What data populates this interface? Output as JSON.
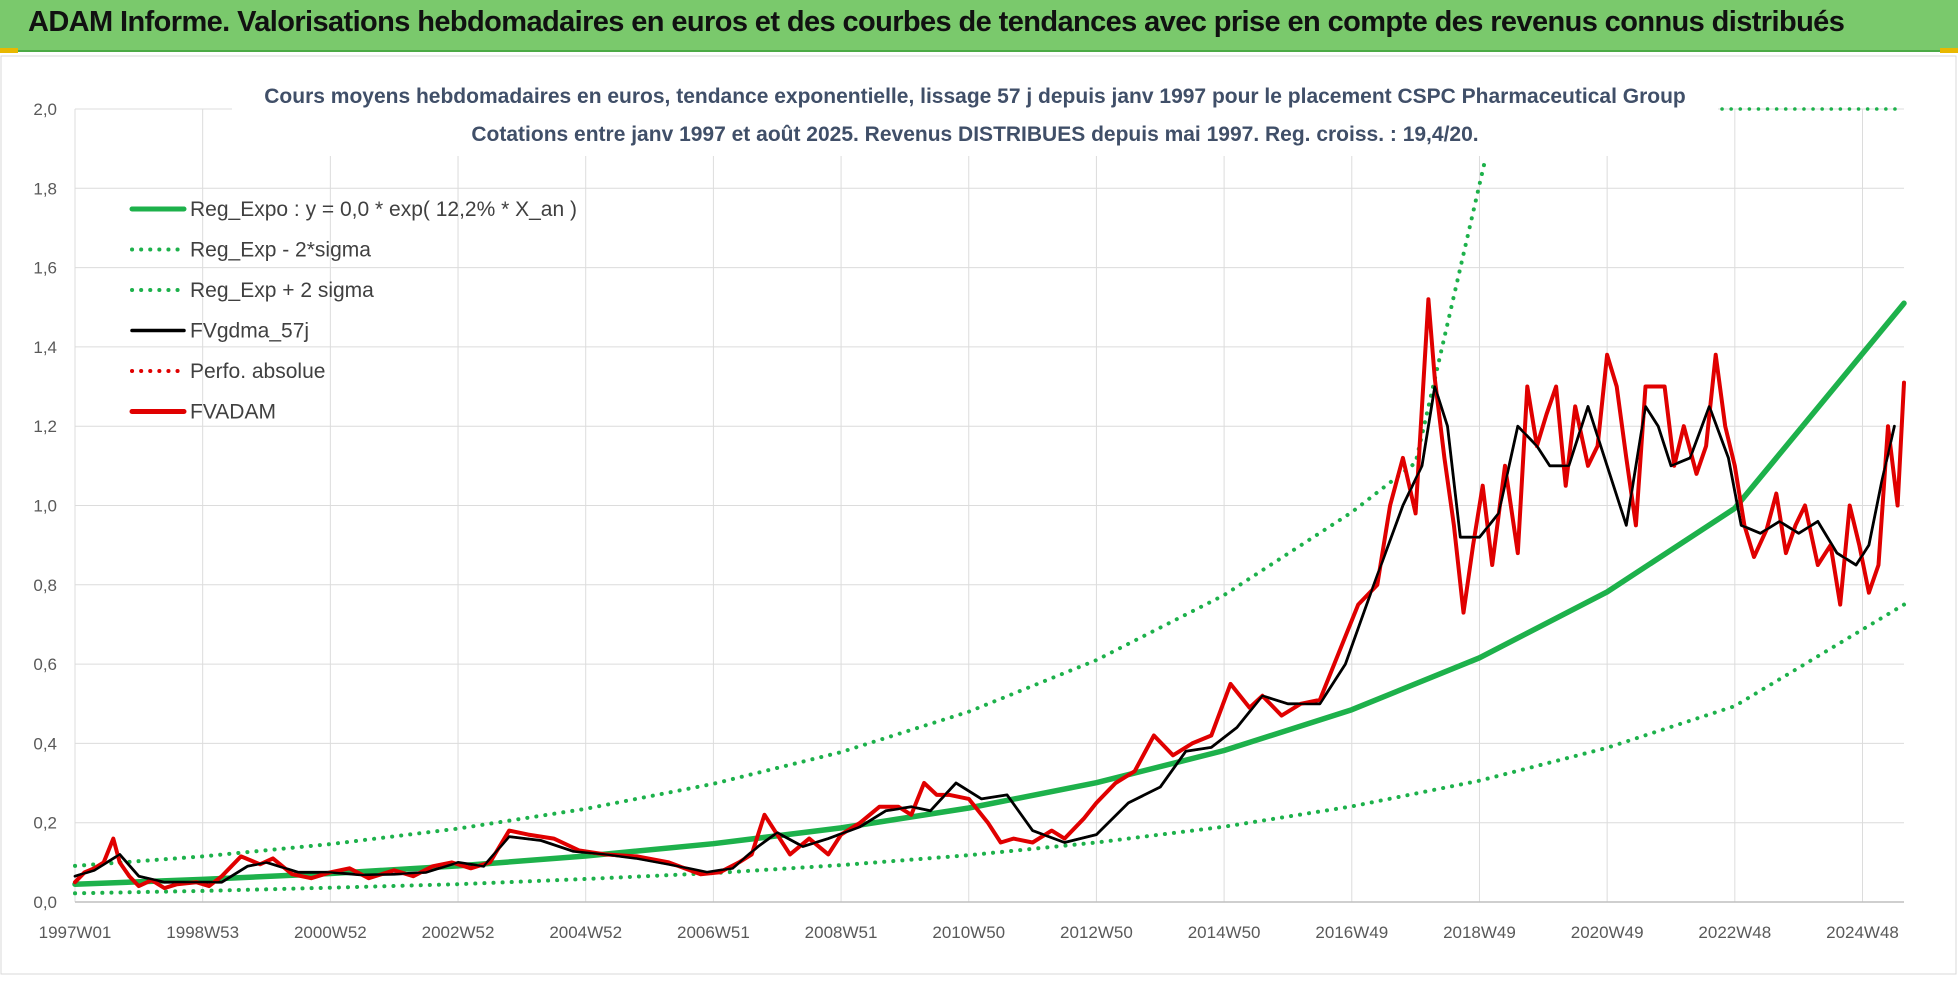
{
  "header": {
    "title": "ADAM Informe. Valorisations hebdomadaires en euros et des courbes de tendances avec prise en compte des revenus connus distribués"
  },
  "chart_data": {
    "type": "line",
    "title": "Cours moyens hebdomadaires en euros, tendance exponentielle, lissage 57 j depuis janv 1997  pour le placement CSPC Pharmaceutical Group",
    "subtitle": "Cotations entre janv 1997 et août 2025.  Revenus DISTRIBUES depuis mai 1997.  Reg. croiss. : 19,4/20.",
    "xlabel": "",
    "ylabel": "",
    "xlim": [
      1997.0,
      2025.65
    ],
    "ylim": [
      0,
      2.0
    ],
    "grid": true,
    "legend_position": "top-left",
    "y_ticks": [
      "0,0",
      "0,2",
      "0,4",
      "0,6",
      "0,8",
      "1,0",
      "1,2",
      "1,4",
      "1,6",
      "1,8",
      "2,0"
    ],
    "x_ticks": [
      {
        "label": "1997W01",
        "x": 1997.0
      },
      {
        "label": "1998W53",
        "x": 1999.0
      },
      {
        "label": "2000W52",
        "x": 2001.0
      },
      {
        "label": "2002W52",
        "x": 2003.0
      },
      {
        "label": "2004W52",
        "x": 2005.0
      },
      {
        "label": "2006W51",
        "x": 2007.0
      },
      {
        "label": "2008W51",
        "x": 2009.0
      },
      {
        "label": "2010W50",
        "x": 2011.0
      },
      {
        "label": "2012W50",
        "x": 2013.0
      },
      {
        "label": "2014W50",
        "x": 2015.0
      },
      {
        "label": "2016W49",
        "x": 2017.0
      },
      {
        "label": "2018W49",
        "x": 2019.0
      },
      {
        "label": "2020W49",
        "x": 2021.0
      },
      {
        "label": "2022W48",
        "x": 2023.0
      },
      {
        "label": "2024W48",
        "x": 2025.0
      }
    ],
    "legend": [
      {
        "label": "Reg_Expo : y = 0,0 * exp( 12,2% *  X_an )",
        "color": "#1db14b",
        "style": "solid-thick"
      },
      {
        "label": "Reg_Exp - 2*sigma",
        "color": "#1db14b",
        "style": "dotted"
      },
      {
        "label": "Reg_Exp + 2 sigma",
        "color": "#1db14b",
        "style": "dotted"
      },
      {
        "label": "FVgdma_57j",
        "color": "#000000",
        "style": "solid"
      },
      {
        "label": "Perfo. absolue",
        "color": "#e00000",
        "style": "dotted"
      },
      {
        "label": "FVADAM",
        "color": "#e00000",
        "style": "solid-thick"
      }
    ],
    "series": [
      {
        "name": "Reg_Expo : y = 0,0 * exp( 12,2% *  X_an )",
        "color": "#1db14b",
        "style": "solid-thick",
        "x": [
          1997.0,
          1999.0,
          2001.0,
          2003.0,
          2005.0,
          2007.0,
          2009.0,
          2011.0,
          2013.0,
          2015.0,
          2017.0,
          2019.0,
          2021.0,
          2023.0,
          2025.65
        ],
        "y": [
          0.045,
          0.057,
          0.072,
          0.091,
          0.116,
          0.147,
          0.187,
          0.237,
          0.301,
          0.382,
          0.485,
          0.616,
          0.782,
          0.993,
          1.51
        ]
      },
      {
        "name": "Reg_Exp - 2*sigma",
        "color": "#1db14b",
        "style": "dotted",
        "x": [
          1997.0,
          1999.0,
          2001.0,
          2003.0,
          2005.0,
          2007.0,
          2009.0,
          2011.0,
          2013.0,
          2015.0,
          2017.0,
          2019.0,
          2021.0,
          2023.0,
          2025.65
        ],
        "y": [
          0.022,
          0.028,
          0.036,
          0.045,
          0.058,
          0.073,
          0.093,
          0.118,
          0.15,
          0.19,
          0.241,
          0.306,
          0.389,
          0.494,
          0.75
        ]
      },
      {
        "name": "Reg_Exp + 2 sigma",
        "color": "#1db14b",
        "style": "dotted",
        "x": [
          1997.0,
          1999.0,
          2001.0,
          2003.0,
          2005.0,
          2007.0,
          2009.0,
          2011.0,
          2013.0,
          2015.0,
          2017.0,
          2018.0,
          2019.1
        ],
        "y": [
          0.091,
          0.115,
          0.146,
          0.185,
          0.235,
          0.298,
          0.378,
          0.48,
          0.61,
          0.774,
          0.983,
          1.108,
          1.88
        ]
      },
      {
        "name": "FVgdma_57j",
        "color": "#000000",
        "style": "solid",
        "x": [
          1997.0,
          1997.3,
          1997.7,
          1998.0,
          1998.4,
          1998.9,
          1999.3,
          1999.7,
          2000.0,
          2000.5,
          2001.0,
          2001.5,
          2002.0,
          2002.5,
          2003.0,
          2003.4,
          2003.8,
          2004.3,
          2004.8,
          2005.3,
          2005.8,
          2006.3,
          2006.9,
          2007.3,
          2007.7,
          2008.0,
          2008.4,
          2008.8,
          2009.3,
          2009.7,
          2010.1,
          2010.4,
          2010.8,
          2011.2,
          2011.6,
          2012.0,
          2012.5,
          2013.0,
          2013.5,
          2014.0,
          2014.4,
          2014.8,
          2015.2,
          2015.6,
          2016.0,
          2016.5,
          2016.9,
          2017.3,
          2017.8,
          2018.1,
          2018.3,
          2018.5,
          2018.7,
          2019.0,
          2019.3,
          2019.6,
          2019.9,
          2020.1,
          2020.4,
          2020.7,
          2021.0,
          2021.3,
          2021.6,
          2021.8,
          2022.0,
          2022.3,
          2022.6,
          2022.9,
          2023.1,
          2023.4,
          2023.7,
          2024.0,
          2024.3,
          2024.6,
          2024.9,
          2025.1,
          2025.3,
          2025.5
        ],
        "y": [
          0.065,
          0.08,
          0.12,
          0.065,
          0.05,
          0.05,
          0.05,
          0.09,
          0.1,
          0.075,
          0.075,
          0.068,
          0.07,
          0.075,
          0.1,
          0.09,
          0.165,
          0.155,
          0.128,
          0.12,
          0.11,
          0.095,
          0.075,
          0.085,
          0.14,
          0.175,
          0.14,
          0.16,
          0.19,
          0.23,
          0.24,
          0.23,
          0.3,
          0.26,
          0.27,
          0.18,
          0.15,
          0.17,
          0.25,
          0.29,
          0.38,
          0.39,
          0.44,
          0.52,
          0.5,
          0.5,
          0.6,
          0.78,
          1.0,
          1.1,
          1.3,
          1.2,
          0.92,
          0.92,
          0.98,
          1.2,
          1.15,
          1.1,
          1.1,
          1.25,
          1.1,
          0.95,
          1.25,
          1.2,
          1.1,
          1.12,
          1.25,
          1.12,
          0.95,
          0.93,
          0.96,
          0.93,
          0.96,
          0.88,
          0.85,
          0.9,
          1.06,
          1.2
        ]
      },
      {
        "name": "FVADAM",
        "color": "#e00000",
        "style": "solid-thick",
        "x": [
          1997.0,
          1997.15,
          1997.3,
          1997.45,
          1997.6,
          1997.7,
          1997.85,
          1998.0,
          1998.2,
          1998.4,
          1998.6,
          1998.9,
          1999.1,
          1999.3,
          1999.6,
          1999.9,
          2000.1,
          2000.4,
          2000.7,
          2001.0,
          2001.3,
          2001.6,
          2002.0,
          2002.3,
          2002.6,
          2002.9,
          2003.2,
          2003.5,
          2003.8,
          2004.1,
          2004.5,
          2004.9,
          2005.3,
          2005.8,
          2006.3,
          2006.8,
          2007.1,
          2007.4,
          2007.6,
          2007.8,
          2008.0,
          2008.2,
          2008.5,
          2008.8,
          2009.0,
          2009.3,
          2009.6,
          2009.9,
          2010.1,
          2010.3,
          2010.5,
          2010.7,
          2011.0,
          2011.3,
          2011.5,
          2011.7,
          2012.0,
          2012.3,
          2012.5,
          2012.8,
          2013.0,
          2013.3,
          2013.6,
          2013.9,
          2014.2,
          2014.5,
          2014.8,
          2015.1,
          2015.4,
          2015.6,
          2015.9,
          2016.2,
          2016.5,
          2016.8,
          2017.1,
          2017.4,
          2017.6,
          2017.8,
          2018.0,
          2018.2,
          2018.3,
          2018.45,
          2018.6,
          2018.75,
          2018.9,
          2019.05,
          2019.2,
          2019.4,
          2019.6,
          2019.75,
          2019.9,
          2020.05,
          2020.2,
          2020.35,
          2020.5,
          2020.7,
          2020.85,
          2021.0,
          2021.15,
          2021.3,
          2021.45,
          2021.6,
          2021.75,
          2021.9,
          2022.05,
          2022.2,
          2022.4,
          2022.55,
          2022.7,
          2022.85,
          2023.0,
          2023.15,
          2023.3,
          2023.5,
          2023.65,
          2023.8,
          2023.95,
          2024.1,
          2024.3,
          2024.5,
          2024.65,
          2024.8,
          2024.95,
          2025.1,
          2025.25,
          2025.4,
          2025.55,
          2025.65
        ],
        "y": [
          0.05,
          0.075,
          0.085,
          0.1,
          0.16,
          0.1,
          0.065,
          0.04,
          0.055,
          0.035,
          0.045,
          0.05,
          0.04,
          0.065,
          0.115,
          0.095,
          0.11,
          0.07,
          0.06,
          0.075,
          0.085,
          0.06,
          0.08,
          0.065,
          0.09,
          0.1,
          0.085,
          0.1,
          0.18,
          0.17,
          0.16,
          0.13,
          0.12,
          0.115,
          0.1,
          0.07,
          0.075,
          0.1,
          0.12,
          0.22,
          0.17,
          0.12,
          0.16,
          0.12,
          0.17,
          0.2,
          0.24,
          0.24,
          0.22,
          0.3,
          0.27,
          0.27,
          0.26,
          0.2,
          0.15,
          0.16,
          0.15,
          0.18,
          0.16,
          0.21,
          0.25,
          0.3,
          0.33,
          0.42,
          0.37,
          0.4,
          0.42,
          0.55,
          0.49,
          0.52,
          0.47,
          0.5,
          0.51,
          0.63,
          0.75,
          0.8,
          1.0,
          1.12,
          0.98,
          1.52,
          1.32,
          1.12,
          0.95,
          0.73,
          0.9,
          1.05,
          0.85,
          1.1,
          0.88,
          1.3,
          1.15,
          1.23,
          1.3,
          1.05,
          1.25,
          1.1,
          1.15,
          1.38,
          1.3,
          1.12,
          0.95,
          1.3,
          1.3,
          1.3,
          1.1,
          1.2,
          1.08,
          1.15,
          1.38,
          1.2,
          1.1,
          0.95,
          0.87,
          0.94,
          1.03,
          0.88,
          0.95,
          1.0,
          0.85,
          0.9,
          0.75,
          1.0,
          0.9,
          0.78,
          0.85,
          1.2,
          1.0,
          1.31
        ]
      }
    ]
  }
}
